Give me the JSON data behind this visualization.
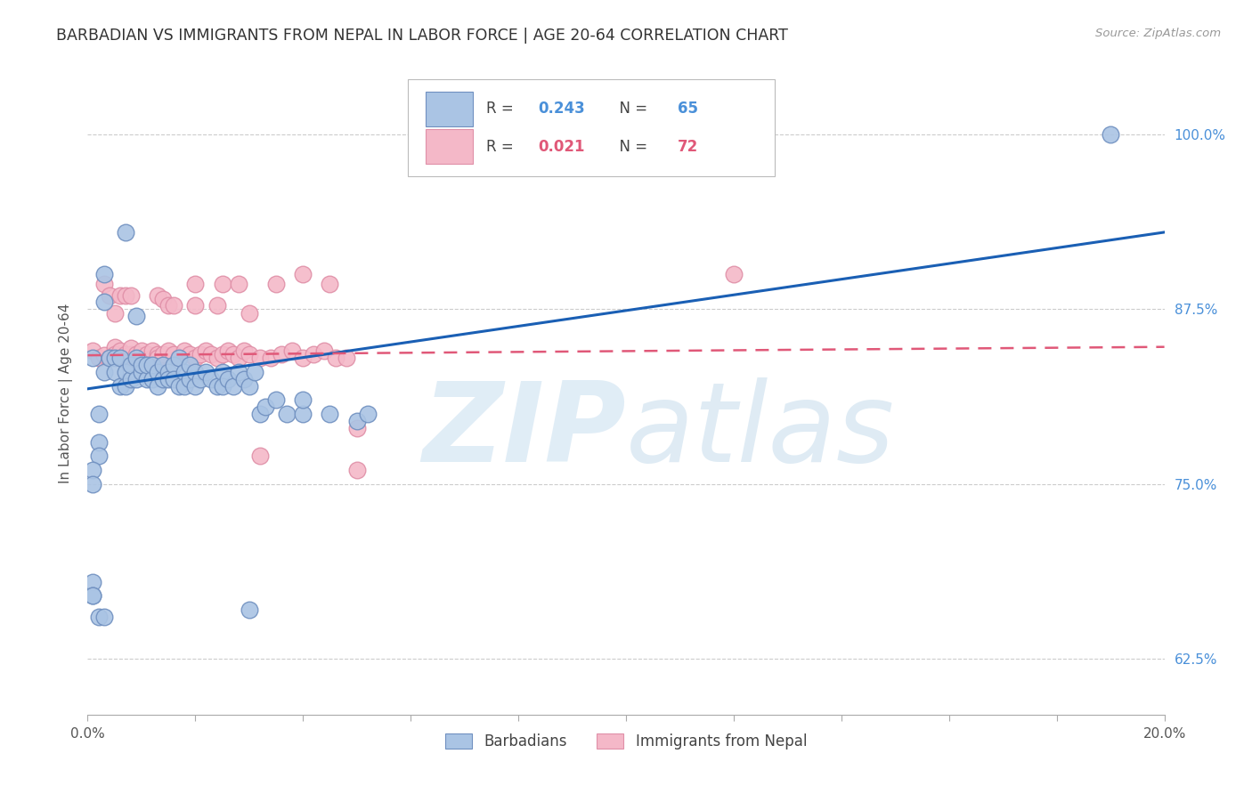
{
  "title": "BARBADIAN VS IMMIGRANTS FROM NEPAL IN LABOR FORCE | AGE 20-64 CORRELATION CHART",
  "source": "Source: ZipAtlas.com",
  "ylabel": "In Labor Force | Age 20-64",
  "xlim": [
    0.0,
    0.2
  ],
  "ylim": [
    0.585,
    1.045
  ],
  "ytick_labels": [
    "62.5%",
    "75.0%",
    "87.5%",
    "100.0%"
  ],
  "ytick_values": [
    0.625,
    0.75,
    0.875,
    1.0
  ],
  "xtick_values": [
    0.0,
    0.02,
    0.04,
    0.06,
    0.08,
    0.1,
    0.12,
    0.14,
    0.16,
    0.18,
    0.2
  ],
  "xtick_labels": [
    "0.0%",
    "",
    "",
    "",
    "",
    "",
    "",
    "",
    "",
    "",
    "20.0%"
  ],
  "blue_scatter": [
    [
      0.001,
      0.84
    ],
    [
      0.002,
      0.8
    ],
    [
      0.003,
      0.83
    ],
    [
      0.004,
      0.84
    ],
    [
      0.005,
      0.84
    ],
    [
      0.005,
      0.83
    ],
    [
      0.006,
      0.82
    ],
    [
      0.006,
      0.84
    ],
    [
      0.007,
      0.83
    ],
    [
      0.007,
      0.82
    ],
    [
      0.008,
      0.825
    ],
    [
      0.008,
      0.835
    ],
    [
      0.009,
      0.825
    ],
    [
      0.009,
      0.84
    ],
    [
      0.01,
      0.83
    ],
    [
      0.01,
      0.835
    ],
    [
      0.011,
      0.825
    ],
    [
      0.011,
      0.835
    ],
    [
      0.012,
      0.825
    ],
    [
      0.012,
      0.835
    ],
    [
      0.013,
      0.83
    ],
    [
      0.013,
      0.82
    ],
    [
      0.014,
      0.825
    ],
    [
      0.014,
      0.835
    ],
    [
      0.015,
      0.83
    ],
    [
      0.015,
      0.825
    ],
    [
      0.016,
      0.835
    ],
    [
      0.016,
      0.825
    ],
    [
      0.017,
      0.84
    ],
    [
      0.017,
      0.82
    ],
    [
      0.018,
      0.83
    ],
    [
      0.018,
      0.82
    ],
    [
      0.019,
      0.835
    ],
    [
      0.019,
      0.825
    ],
    [
      0.02,
      0.83
    ],
    [
      0.02,
      0.82
    ],
    [
      0.021,
      0.825
    ],
    [
      0.022,
      0.83
    ],
    [
      0.023,
      0.825
    ],
    [
      0.024,
      0.82
    ],
    [
      0.025,
      0.83
    ],
    [
      0.025,
      0.82
    ],
    [
      0.026,
      0.825
    ],
    [
      0.027,
      0.82
    ],
    [
      0.028,
      0.83
    ],
    [
      0.029,
      0.825
    ],
    [
      0.03,
      0.82
    ],
    [
      0.031,
      0.83
    ],
    [
      0.032,
      0.8
    ],
    [
      0.033,
      0.805
    ],
    [
      0.035,
      0.81
    ],
    [
      0.037,
      0.8
    ],
    [
      0.04,
      0.8
    ],
    [
      0.04,
      0.81
    ],
    [
      0.045,
      0.8
    ],
    [
      0.05,
      0.795
    ],
    [
      0.052,
      0.8
    ],
    [
      0.003,
      0.9
    ],
    [
      0.002,
      0.78
    ],
    [
      0.002,
      0.77
    ],
    [
      0.001,
      0.76
    ],
    [
      0.001,
      0.75
    ],
    [
      0.001,
      0.68
    ],
    [
      0.001,
      0.67
    ],
    [
      0.19,
      1.0
    ],
    [
      0.007,
      0.93
    ],
    [
      0.009,
      0.87
    ],
    [
      0.003,
      0.88
    ],
    [
      0.001,
      0.67
    ],
    [
      0.03,
      0.66
    ],
    [
      0.002,
      0.655
    ],
    [
      0.003,
      0.655
    ]
  ],
  "pink_scatter": [
    [
      0.001,
      0.845
    ],
    [
      0.002,
      0.84
    ],
    [
      0.003,
      0.842
    ],
    [
      0.004,
      0.84
    ],
    [
      0.005,
      0.848
    ],
    [
      0.005,
      0.843
    ],
    [
      0.006,
      0.84
    ],
    [
      0.006,
      0.845
    ],
    [
      0.007,
      0.843
    ],
    [
      0.007,
      0.84
    ],
    [
      0.008,
      0.843
    ],
    [
      0.008,
      0.847
    ],
    [
      0.009,
      0.84
    ],
    [
      0.009,
      0.843
    ],
    [
      0.01,
      0.84
    ],
    [
      0.01,
      0.845
    ],
    [
      0.011,
      0.843
    ],
    [
      0.012,
      0.84
    ],
    [
      0.012,
      0.845
    ],
    [
      0.013,
      0.843
    ],
    [
      0.013,
      0.84
    ],
    [
      0.014,
      0.843
    ],
    [
      0.015,
      0.845
    ],
    [
      0.016,
      0.843
    ],
    [
      0.017,
      0.84
    ],
    [
      0.018,
      0.845
    ],
    [
      0.019,
      0.843
    ],
    [
      0.02,
      0.84
    ],
    [
      0.021,
      0.843
    ],
    [
      0.022,
      0.845
    ],
    [
      0.023,
      0.843
    ],
    [
      0.024,
      0.84
    ],
    [
      0.025,
      0.843
    ],
    [
      0.026,
      0.845
    ],
    [
      0.027,
      0.843
    ],
    [
      0.028,
      0.84
    ],
    [
      0.029,
      0.845
    ],
    [
      0.03,
      0.843
    ],
    [
      0.032,
      0.84
    ],
    [
      0.034,
      0.84
    ],
    [
      0.036,
      0.843
    ],
    [
      0.038,
      0.845
    ],
    [
      0.04,
      0.84
    ],
    [
      0.042,
      0.843
    ],
    [
      0.044,
      0.845
    ],
    [
      0.046,
      0.84
    ],
    [
      0.048,
      0.84
    ],
    [
      0.003,
      0.893
    ],
    [
      0.004,
      0.885
    ],
    [
      0.005,
      0.872
    ],
    [
      0.006,
      0.885
    ],
    [
      0.007,
      0.885
    ],
    [
      0.008,
      0.885
    ],
    [
      0.02,
      0.893
    ],
    [
      0.025,
      0.893
    ],
    [
      0.013,
      0.885
    ],
    [
      0.014,
      0.882
    ],
    [
      0.015,
      0.878
    ],
    [
      0.016,
      0.878
    ],
    [
      0.02,
      0.878
    ],
    [
      0.024,
      0.878
    ],
    [
      0.028,
      0.893
    ],
    [
      0.03,
      0.872
    ],
    [
      0.035,
      0.893
    ],
    [
      0.04,
      0.9
    ],
    [
      0.045,
      0.893
    ],
    [
      0.12,
      0.9
    ],
    [
      0.05,
      0.79
    ],
    [
      0.05,
      0.76
    ],
    [
      0.032,
      0.77
    ]
  ],
  "blue_line": [
    [
      0.0,
      0.818
    ],
    [
      0.2,
      0.93
    ]
  ],
  "pink_line": [
    [
      0.0,
      0.842
    ],
    [
      0.2,
      0.848
    ]
  ],
  "blue_line_color": "#1a5fb4",
  "pink_line_color": "#e05878",
  "blue_scatter_color": "#aac4e4",
  "pink_scatter_color": "#f4b8c8",
  "blue_scatter_edge": "#7090c0",
  "pink_scatter_edge": "#e090a8",
  "watermark_zip": "ZIP",
  "watermark_atlas": "atlas",
  "background_color": "#ffffff",
  "grid_color": "#cccccc",
  "right_tick_color": "#4a90d9",
  "title_color": "#333333",
  "source_color": "#999999"
}
